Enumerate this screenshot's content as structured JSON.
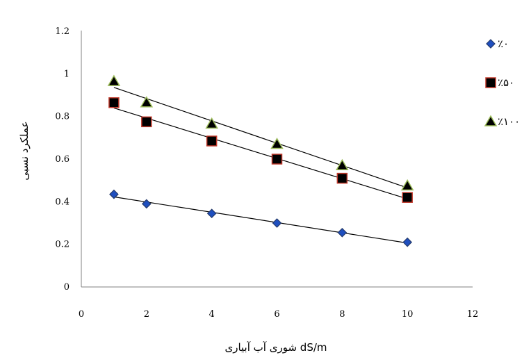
{
  "chart_data": {
    "type": "scatter",
    "title": "",
    "xlabel": "شوری آب آبیاری dS/m",
    "ylabel": "عملکرد نسبی",
    "xlim": [
      0,
      12
    ],
    "ylim": [
      0,
      1.2
    ],
    "x_ticks": [
      0,
      2,
      4,
      6,
      8,
      10,
      12
    ],
    "y_ticks": [
      0,
      0.2,
      0.4,
      0.6,
      0.8,
      1,
      1.2
    ],
    "x_tick_labels": [
      "0",
      "2",
      "4",
      "6",
      "8",
      "10",
      "12"
    ],
    "y_tick_labels": [
      "0",
      "0.2",
      "0.4",
      "0.6",
      "0.8",
      "1",
      "1.2"
    ],
    "grid": false,
    "legend_position": "right",
    "trendlines": "linear",
    "series": [
      {
        "name": "٪۰",
        "marker": "diamond",
        "fill": "#1f4fbf",
        "stroke": "#243a6b",
        "x": [
          1,
          2,
          4,
          6,
          8,
          10
        ],
        "y": [
          0.435,
          0.39,
          0.345,
          0.3,
          0.255,
          0.21
        ]
      },
      {
        "name": "٪۵۰",
        "marker": "square",
        "fill": "#000000",
        "stroke": "#c0392b",
        "x": [
          1,
          2,
          4,
          6,
          8,
          10
        ],
        "y": [
          0.865,
          0.775,
          0.685,
          0.6,
          0.51,
          0.42
        ]
      },
      {
        "name": "٪۱۰۰",
        "marker": "triangle",
        "fill": "#000000",
        "stroke": "#9bbb59",
        "x": [
          1,
          2,
          4,
          6,
          8,
          10
        ],
        "y": [
          0.965,
          0.865,
          0.765,
          0.67,
          0.57,
          0.475
        ]
      }
    ]
  }
}
